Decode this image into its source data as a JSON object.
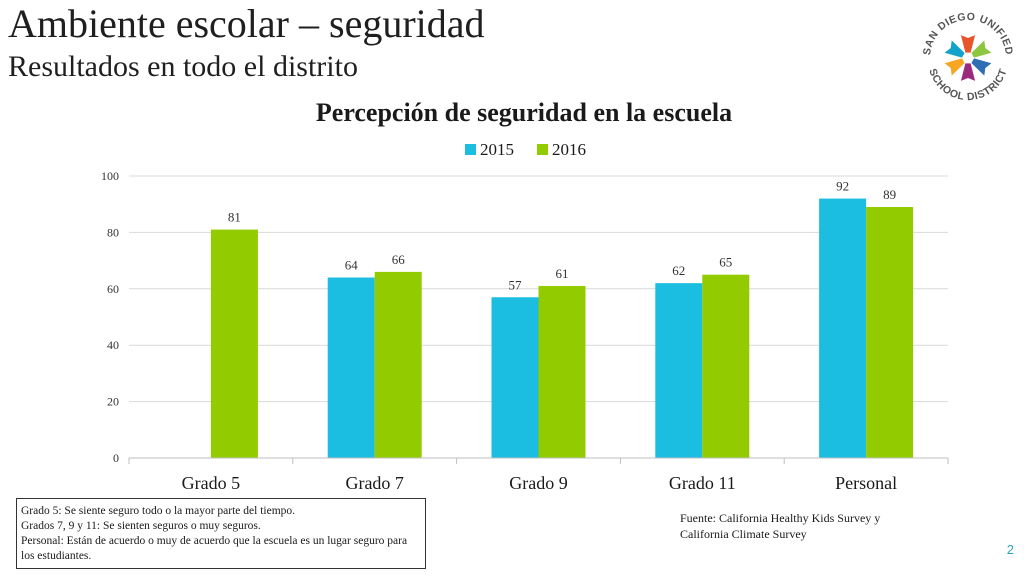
{
  "header": {
    "title": "Ambiente escolar – seguridad",
    "subtitle": "Resultados en todo el distrito"
  },
  "logo": {
    "text_top": "SAN DIEGO UNIFIED",
    "text_bottom": "SCHOOL DISTRICT",
    "colors": [
      "#e8542b",
      "#8dc63f",
      "#2f6db5",
      "#9b2a7e",
      "#f6a623",
      "#13a2c9"
    ]
  },
  "chart_data": {
    "type": "bar",
    "title": "Percepción de seguridad en la escuela",
    "categories": [
      "Grado 5",
      "Grado 7",
      "Grado 9",
      "Grado 11",
      "Personal"
    ],
    "series": [
      {
        "name": "2015",
        "color": "#1bbde0",
        "values": [
          null,
          64,
          57,
          62,
          92
        ]
      },
      {
        "name": "2016",
        "color": "#92cc00",
        "values": [
          81,
          66,
          61,
          65,
          89
        ]
      }
    ],
    "ylim": [
      0,
      100
    ],
    "yticks": [
      0,
      20,
      40,
      60,
      80,
      100
    ],
    "grid": true,
    "legend": "top-center",
    "xlabel": "",
    "ylabel": ""
  },
  "notes": [
    "Grado 5: Se siente seguro todo o la mayor parte del tiempo.",
    "Grados 7, 9 y 11: Se sienten seguros o muy seguros.",
    "Personal: Están de acuerdo o muy de acuerdo que la escuela es un lugar seguro para los estudiantes."
  ],
  "source": {
    "line1": "Fuente: California Healthy Kids Survey  y",
    "line2": "California Climate Survey"
  },
  "page_number": "2"
}
